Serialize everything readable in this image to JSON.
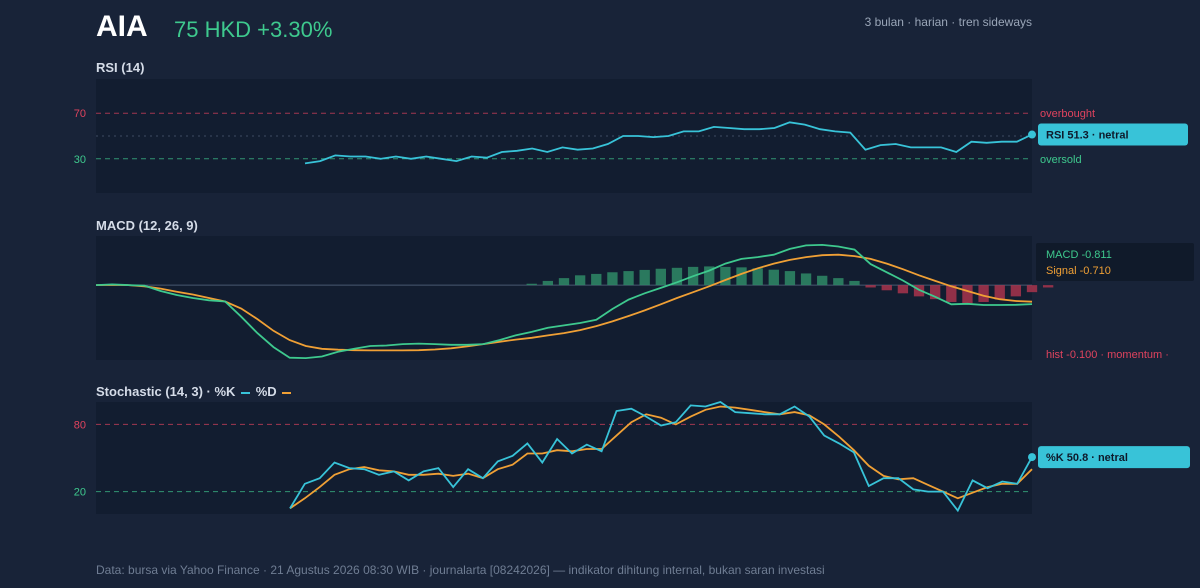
{
  "header": {
    "ticker": "AIA",
    "price": "75 HKD",
    "change": "+3.30%",
    "period": "3 bulan · harian · tren sideways"
  },
  "colors": {
    "background": "#182338",
    "panel": "#121d30",
    "up": "#3ec98e",
    "down": "#e0435e",
    "cyan": "#38c3d8",
    "orange": "#f0a035"
  },
  "chart_data": [
    {
      "type": "line",
      "title": "RSI (14)",
      "ylim": [
        0,
        100
      ],
      "ticks": [
        70,
        30
      ],
      "threshold_labels": {
        "upper": "overbought",
        "lower": "oversold"
      },
      "readout": "RSI 51.3 · netral",
      "series": [
        {
          "values": [
            26,
            28,
            33,
            32,
            32,
            30,
            32,
            30,
            32,
            30,
            28,
            32,
            31,
            36,
            37,
            39,
            36,
            40,
            38,
            39,
            43,
            50,
            50,
            49,
            50,
            54,
            54,
            58,
            57,
            56,
            56,
            57,
            62,
            60,
            56,
            54,
            53,
            38,
            42,
            43,
            40,
            40,
            40,
            36,
            45,
            44,
            45,
            45,
            51.3
          ]
        }
      ]
    },
    {
      "type": "line",
      "title": "MACD (12, 26, 9)",
      "readout": {
        "macd": "MACD -0.811",
        "signal": "Signal -0.710",
        "hist": "hist -0.100 · momentum ·"
      },
      "ylim": [
        -3.2,
        2.1
      ],
      "series": [
        {
          "name": "MACD",
          "values": [
            0.0,
            0.03,
            0.0,
            -0.02,
            -0.25,
            -0.42,
            -0.55,
            -0.65,
            -0.7,
            -1.35,
            -2.05,
            -2.65,
            -3.1,
            -3.12,
            -3.05,
            -2.85,
            -2.72,
            -2.6,
            -2.58,
            -2.52,
            -2.5,
            -2.52,
            -2.55,
            -2.55,
            -2.52,
            -2.35,
            -2.15,
            -2.0,
            -1.82,
            -1.72,
            -1.62,
            -1.48,
            -1.02,
            -0.62,
            -0.35,
            -0.12,
            0.12,
            0.38,
            0.62,
            0.92,
            1.12,
            1.2,
            1.3,
            1.55,
            1.7,
            1.72,
            1.65,
            1.52,
            0.9,
            0.55,
            0.2,
            -0.2,
            -0.5,
            -0.82,
            -0.8,
            -0.85,
            -0.85,
            -0.84,
            -0.81
          ]
        },
        {
          "name": "Signal",
          "values": [
            0.0,
            0.01,
            0.0,
            -0.05,
            -0.15,
            -0.28,
            -0.4,
            -0.55,
            -0.7,
            -1.0,
            -1.45,
            -1.95,
            -2.35,
            -2.6,
            -2.72,
            -2.76,
            -2.78,
            -2.79,
            -2.79,
            -2.79,
            -2.78,
            -2.75,
            -2.7,
            -2.62,
            -2.52,
            -2.42,
            -2.33,
            -2.25,
            -2.15,
            -2.05,
            -1.92,
            -1.75,
            -1.55,
            -1.32,
            -1.08,
            -0.82,
            -0.55,
            -0.3,
            -0.05,
            0.22,
            0.48,
            0.72,
            0.92,
            1.08,
            1.2,
            1.28,
            1.3,
            1.24,
            1.12,
            0.92,
            0.68,
            0.42,
            0.18,
            -0.05,
            -0.25,
            -0.45,
            -0.6,
            -0.68,
            -0.71
          ]
        },
        {
          "name": "hist",
          "start": 27,
          "values": [
            0.06,
            0.18,
            0.3,
            0.42,
            0.48,
            0.55,
            0.6,
            0.65,
            0.7,
            0.74,
            0.78,
            0.8,
            0.78,
            0.76,
            0.72,
            0.66,
            0.6,
            0.5,
            0.4,
            0.3,
            0.18,
            -0.1,
            -0.22,
            -0.35,
            -0.48,
            -0.6,
            -0.72,
            -0.78,
            -0.72,
            -0.62,
            -0.48,
            -0.3,
            -0.1
          ]
        }
      ]
    },
    {
      "type": "line",
      "title": "Stochastic (14, 3) · %K",
      "legend_d": "%D",
      "ylim": [
        0,
        100
      ],
      "ticks": [
        80,
        20
      ],
      "readout": "%K 50.8 · netral",
      "series": [
        {
          "name": "%K",
          "values": [
            5,
            27,
            32,
            46,
            41,
            40,
            35,
            38,
            30,
            38,
            41,
            24,
            40,
            32,
            47,
            52,
            63,
            46,
            67,
            54,
            62,
            56,
            92,
            94,
            87,
            79,
            82,
            97,
            96,
            100,
            91,
            90,
            89,
            89,
            96,
            87,
            70,
            63,
            55,
            25,
            32,
            32,
            22,
            20,
            20,
            3,
            30,
            23,
            29,
            27,
            50.8
          ]
        },
        {
          "name": "%D",
          "values": [
            5,
            14,
            24,
            35,
            40,
            42,
            39,
            38,
            35,
            35,
            36,
            34,
            36,
            32,
            40,
            44,
            54,
            54,
            57,
            56,
            58,
            58,
            70,
            82,
            89,
            86,
            80,
            87,
            93,
            96,
            95,
            93,
            91,
            89,
            91,
            88,
            80,
            69,
            57,
            43,
            34,
            31,
            32,
            26,
            20,
            14,
            19,
            24,
            27,
            27,
            40
          ]
        }
      ]
    }
  ],
  "footer": "Data: bursa via Yahoo Finance · 21 Agustus 2026 08:30 WIB · journalarta [08242026] — indikator dihitung internal, bukan saran investasi"
}
